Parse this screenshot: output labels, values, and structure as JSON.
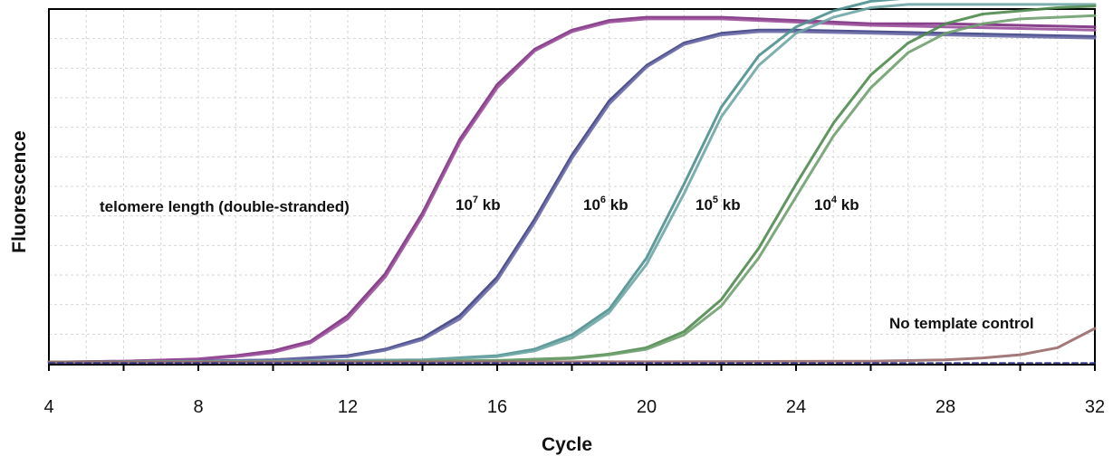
{
  "chart_data": {
    "type": "line",
    "xlabel": "Cycle",
    "ylabel": "Fluorescence",
    "xlim": [
      4,
      32
    ],
    "ylim": [
      0,
      1.1
    ],
    "x_ticks": [
      4,
      8,
      12,
      16,
      20,
      24,
      28,
      32
    ],
    "grid": true,
    "colors": {
      "s7a": "#7a2e7e",
      "s7b": "#9a4f9a",
      "s6a": "#3a3f80",
      "s6b": "#6a6aa6",
      "s5a": "#4e8f8f",
      "s5b": "#6fa6a6",
      "s4a": "#4f8a4f",
      "s4b": "#6fa06f",
      "ntc": "#9a6a6a",
      "base": "#2a2f8a"
    },
    "annotations": {
      "telomere": "telomere length (double-stranded)",
      "l7": {
        "base": "10",
        "exp": "7",
        "unit": " kb"
      },
      "l6": {
        "base": "10",
        "exp": "6",
        "unit": " kb"
      },
      "l5": {
        "base": "10",
        "exp": "5",
        "unit": " kb"
      },
      "l4": {
        "base": "10",
        "exp": "4",
        "unit": " kb"
      },
      "ntc": "No template control"
    },
    "series": [
      {
        "id": "s7a",
        "x": [
          4,
          6,
          8,
          9,
          10,
          11,
          12,
          13,
          14,
          15,
          16,
          17,
          18,
          19,
          20,
          22,
          24,
          26,
          28,
          30,
          32
        ],
        "y": [
          0.005,
          0.008,
          0.015,
          0.025,
          0.04,
          0.07,
          0.15,
          0.28,
          0.47,
          0.7,
          0.87,
          0.98,
          1.04,
          1.07,
          1.08,
          1.08,
          1.07,
          1.06,
          1.06,
          1.055,
          1.05
        ]
      },
      {
        "id": "s7b",
        "x": [
          4,
          6,
          8,
          9,
          10,
          11,
          12,
          13,
          14,
          15,
          16,
          17,
          18,
          19,
          20,
          22,
          24,
          26,
          28,
          30,
          32
        ],
        "y": [
          0.005,
          0.008,
          0.014,
          0.022,
          0.035,
          0.065,
          0.14,
          0.27,
          0.46,
          0.69,
          0.86,
          0.975,
          1.035,
          1.065,
          1.075,
          1.075,
          1.065,
          1.055,
          1.05,
          1.045,
          1.04
        ]
      },
      {
        "id": "s6a",
        "x": [
          4,
          8,
          10,
          12,
          13,
          14,
          15,
          16,
          17,
          18,
          19,
          20,
          21,
          22,
          23,
          24,
          26,
          28,
          30,
          32
        ],
        "y": [
          0.005,
          0.008,
          0.012,
          0.025,
          0.045,
          0.08,
          0.15,
          0.27,
          0.45,
          0.65,
          0.82,
          0.93,
          1.0,
          1.03,
          1.04,
          1.04,
          1.035,
          1.03,
          1.025,
          1.02
        ]
      },
      {
        "id": "s6b",
        "x": [
          4,
          8,
          10,
          12,
          13,
          14,
          15,
          16,
          17,
          18,
          19,
          20,
          21,
          22,
          23,
          24,
          26,
          28,
          30,
          32
        ],
        "y": [
          0.005,
          0.008,
          0.012,
          0.022,
          0.042,
          0.075,
          0.14,
          0.26,
          0.44,
          0.64,
          0.81,
          0.925,
          0.995,
          1.025,
          1.035,
          1.035,
          1.03,
          1.025,
          1.02,
          1.015
        ]
      },
      {
        "id": "s5a",
        "x": [
          4,
          10,
          14,
          16,
          17,
          18,
          19,
          20,
          21,
          22,
          23,
          24,
          25,
          26,
          27,
          28,
          30,
          32
        ],
        "y": [
          0.005,
          0.008,
          0.012,
          0.025,
          0.045,
          0.09,
          0.17,
          0.33,
          0.56,
          0.8,
          0.96,
          1.05,
          1.1,
          1.13,
          1.14,
          1.14,
          1.14,
          1.14
        ]
      },
      {
        "id": "s5b",
        "x": [
          4,
          10,
          14,
          16,
          17,
          18,
          19,
          20,
          21,
          22,
          23,
          24,
          25,
          26,
          27,
          28,
          30,
          32
        ],
        "y": [
          0.005,
          0.008,
          0.012,
          0.022,
          0.04,
          0.08,
          0.16,
          0.31,
          0.53,
          0.77,
          0.93,
          1.03,
          1.08,
          1.11,
          1.12,
          1.12,
          1.12,
          1.12
        ]
      },
      {
        "id": "s4a",
        "x": [
          4,
          12,
          16,
          18,
          19,
          20,
          21,
          22,
          23,
          24,
          25,
          26,
          27,
          28,
          29,
          30,
          31,
          32
        ],
        "y": [
          0.005,
          0.006,
          0.01,
          0.018,
          0.03,
          0.05,
          0.1,
          0.2,
          0.36,
          0.56,
          0.75,
          0.9,
          1.0,
          1.06,
          1.09,
          1.1,
          1.11,
          1.115
        ]
      },
      {
        "id": "s4b",
        "x": [
          4,
          12,
          16,
          18,
          19,
          20,
          21,
          22,
          23,
          24,
          25,
          26,
          27,
          28,
          29,
          30,
          31,
          32
        ],
        "y": [
          0.005,
          0.006,
          0.01,
          0.016,
          0.028,
          0.045,
          0.09,
          0.18,
          0.33,
          0.52,
          0.71,
          0.86,
          0.97,
          1.03,
          1.06,
          1.075,
          1.08,
          1.085
        ]
      },
      {
        "id": "ntc",
        "x": [
          4,
          20,
          26,
          28,
          29,
          30,
          31,
          32
        ],
        "y": [
          0.005,
          0.006,
          0.008,
          0.012,
          0.018,
          0.028,
          0.05,
          0.11
        ]
      },
      {
        "id": "base",
        "x": [
          4,
          32
        ],
        "y": [
          0.002,
          0.002
        ]
      }
    ]
  }
}
